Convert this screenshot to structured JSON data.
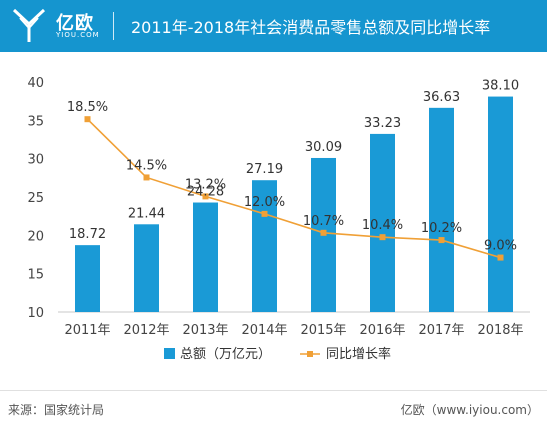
{
  "header": {
    "brand": "亿欧",
    "brand_sub": "YIOU.COM",
    "title": "2011年-2018年社会消费品零售总额及同比增长率"
  },
  "colors": {
    "header": "#1595cf",
    "bar": "#1a9ad6",
    "line": "#f0a036"
  },
  "chart_data": {
    "type": "bar",
    "categories": [
      "2011年",
      "2012年",
      "2013年",
      "2014年",
      "2015年",
      "2016年",
      "2017年",
      "2018年"
    ],
    "series": [
      {
        "name": "总额（万亿元）",
        "type": "bar",
        "values": [
          18.72,
          21.44,
          24.28,
          27.19,
          30.09,
          33.23,
          36.63,
          38.1
        ],
        "labels": [
          "18.72",
          "21.44",
          "24.28",
          "27.19",
          "30.09",
          "33.23",
          "36.63",
          "38.10"
        ]
      },
      {
        "name": "同比增长率",
        "type": "line",
        "values": [
          18.5,
          14.5,
          13.2,
          12.0,
          10.7,
          10.4,
          10.2,
          9.0
        ],
        "labels": [
          "18.5%",
          "14.5%",
          "13.2%",
          "12.0%",
          "10.7%",
          "10.4%",
          "10.2%",
          "9.0%"
        ]
      }
    ],
    "ylim": [
      10,
      40
    ],
    "yticks": [
      "10",
      "15",
      "20",
      "25",
      "30",
      "35",
      "40"
    ],
    "grid": false,
    "legend": "bottom"
  },
  "footer": {
    "source": "来源：国家统计局",
    "site": "亿欧（www.iyiou.com）"
  }
}
